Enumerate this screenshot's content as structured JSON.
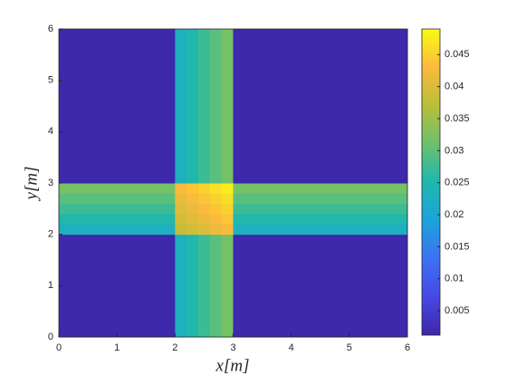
{
  "chart_data": {
    "type": "heatmap",
    "xlabel": "x[m]",
    "ylabel": "y[m]",
    "xbins": [
      0,
      2,
      2.2,
      2.4,
      2.6,
      2.8,
      3,
      6
    ],
    "ybins": [
      0,
      2,
      2.2,
      2.4,
      2.6,
      2.8,
      3,
      6
    ],
    "z": [
      [
        0.0015,
        0.023,
        0.0252,
        0.0274,
        0.0296,
        0.0318,
        0.0015
      ],
      [
        0.023,
        0.038,
        0.0392,
        0.0404,
        0.0416,
        0.0428,
        0.023
      ],
      [
        0.0252,
        0.0392,
        0.0404,
        0.0416,
        0.0428,
        0.044,
        0.0252
      ],
      [
        0.0274,
        0.0404,
        0.0416,
        0.0428,
        0.044,
        0.0452,
        0.0274
      ],
      [
        0.0296,
        0.0416,
        0.0428,
        0.044,
        0.0452,
        0.0464,
        0.0296
      ],
      [
        0.0318,
        0.0428,
        0.044,
        0.0452,
        0.0464,
        0.0476,
        0.0318
      ],
      [
        0.0015,
        0.023,
        0.0252,
        0.0274,
        0.0296,
        0.0318,
        0.0015
      ]
    ],
    "xlim": [
      0,
      6
    ],
    "ylim": [
      0,
      6
    ],
    "xticks": [
      0,
      1,
      2,
      3,
      4,
      5,
      6
    ],
    "yticks": [
      0,
      1,
      2,
      3,
      4,
      5,
      6
    ],
    "clim": [
      0.0012,
      0.049
    ],
    "cticks": [
      0.005,
      0.01,
      0.015,
      0.02,
      0.025,
      0.03,
      0.035,
      0.04,
      0.045
    ],
    "colormap": [
      "#3e26a8",
      "#4648e6",
      "#3d72f2",
      "#1ba3dc",
      "#1fb7ae",
      "#6cc16b",
      "#b9be3a",
      "#fbba3e",
      "#f9fb15"
    ]
  }
}
